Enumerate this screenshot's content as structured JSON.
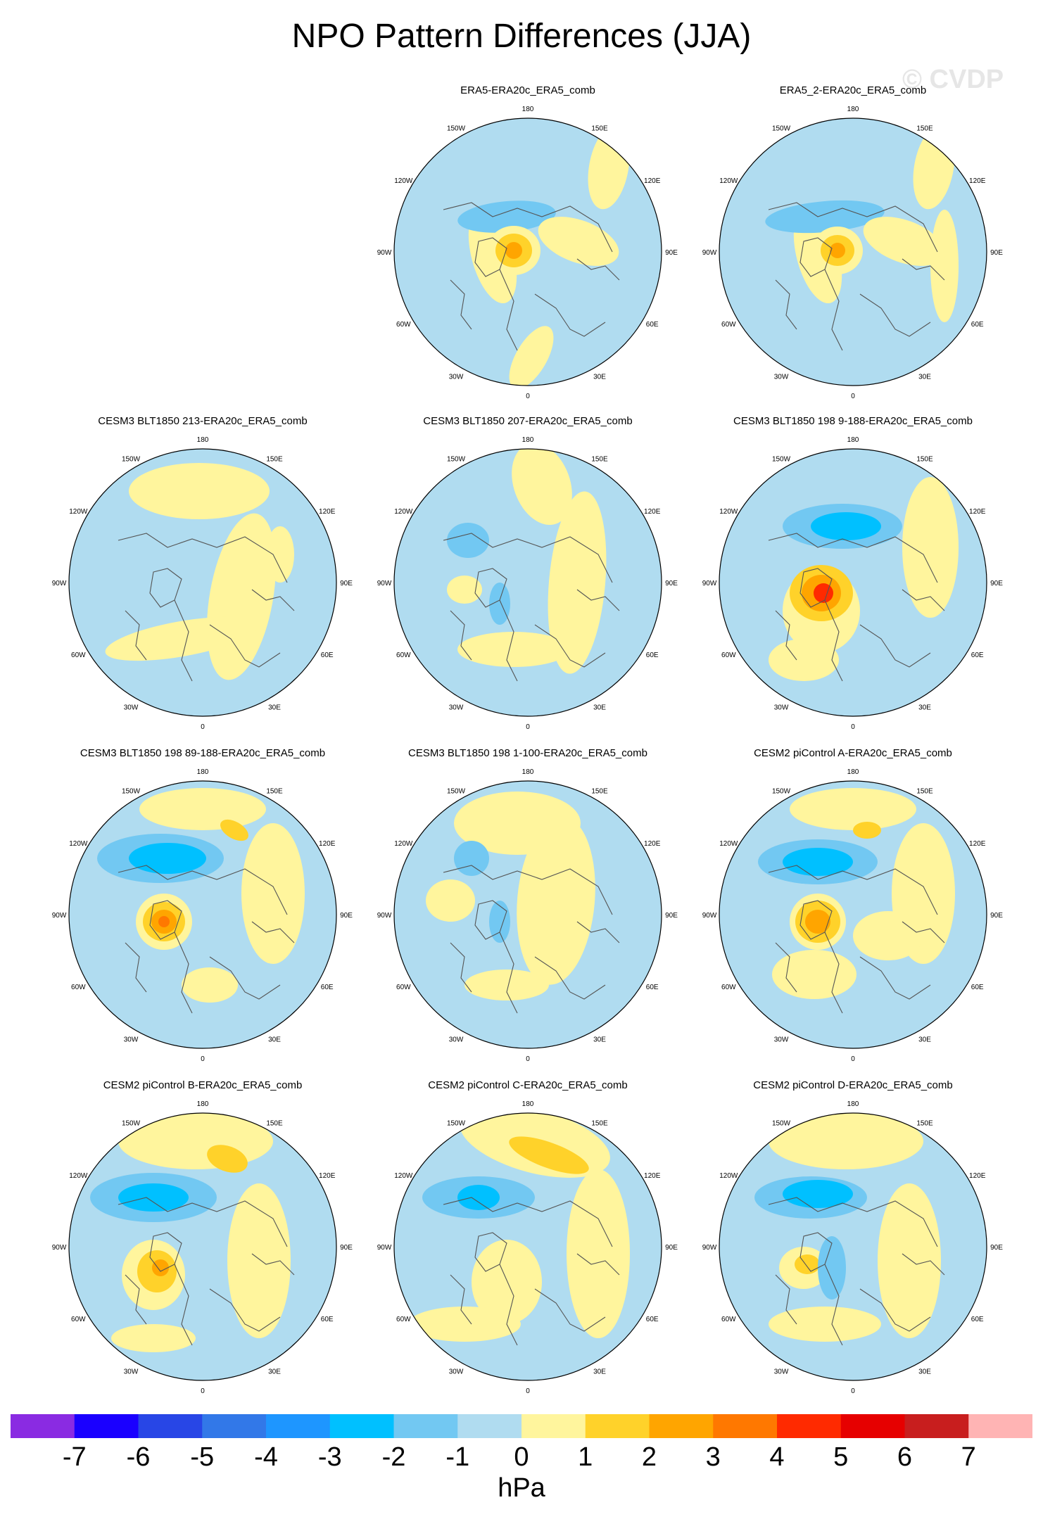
{
  "title": "NPO Pattern Differences (JJA)",
  "watermark": "© CVDP",
  "units": "hPa",
  "colorbar": {
    "colors": [
      "#8a2be2",
      "#1a00ff",
      "#2846e6",
      "#3278e8",
      "#1e96ff",
      "#00c0ff",
      "#72c8f2",
      "#b0dcf0",
      "#fff59d",
      "#ffd22a",
      "#ffa500",
      "#ff7800",
      "#ff2a00",
      "#e60000",
      "#c81e1e",
      "#ffb4b4"
    ],
    "labels": [
      "-7",
      "-6",
      "-5",
      "-4",
      "-3",
      "-2",
      "-1",
      "0",
      "1",
      "2",
      "3",
      "4",
      "5",
      "6",
      "7"
    ]
  },
  "longitude_labels": [
    "180",
    "150E",
    "120E",
    "90E",
    "60E",
    "30E",
    "0",
    "30W",
    "60W",
    "90W",
    "120W",
    "150W"
  ],
  "panels": [
    {
      "id": "p1",
      "title": "ERA5-ERA20c_ERA5_comb"
    },
    {
      "id": "p2",
      "title": "ERA5_2-ERA20c_ERA5_comb"
    },
    {
      "id": "p3",
      "title": "CESM3 BLT1850 213-ERA20c_ERA5_comb"
    },
    {
      "id": "p4",
      "title": "CESM3 BLT1850 207-ERA20c_ERA5_comb"
    },
    {
      "id": "p5",
      "title": "CESM3 BLT1850 198 9-188-ERA20c_ERA5_comb"
    },
    {
      "id": "p6",
      "title": "CESM3 BLT1850 198 89-188-ERA20c_ERA5_comb"
    },
    {
      "id": "p7",
      "title": "CESM3 BLT1850 198 1-100-ERA20c_ERA5_comb"
    },
    {
      "id": "p8",
      "title": "CESM2 piControl A-ERA20c_ERA5_comb"
    },
    {
      "id": "p9",
      "title": "CESM2 piControl B-ERA20c_ERA5_comb"
    },
    {
      "id": "p10",
      "title": "CESM2 piControl C-ERA20c_ERA5_comb"
    },
    {
      "id": "p11",
      "title": "CESM2 piControl D-ERA20c_ERA5_comb"
    }
  ]
}
